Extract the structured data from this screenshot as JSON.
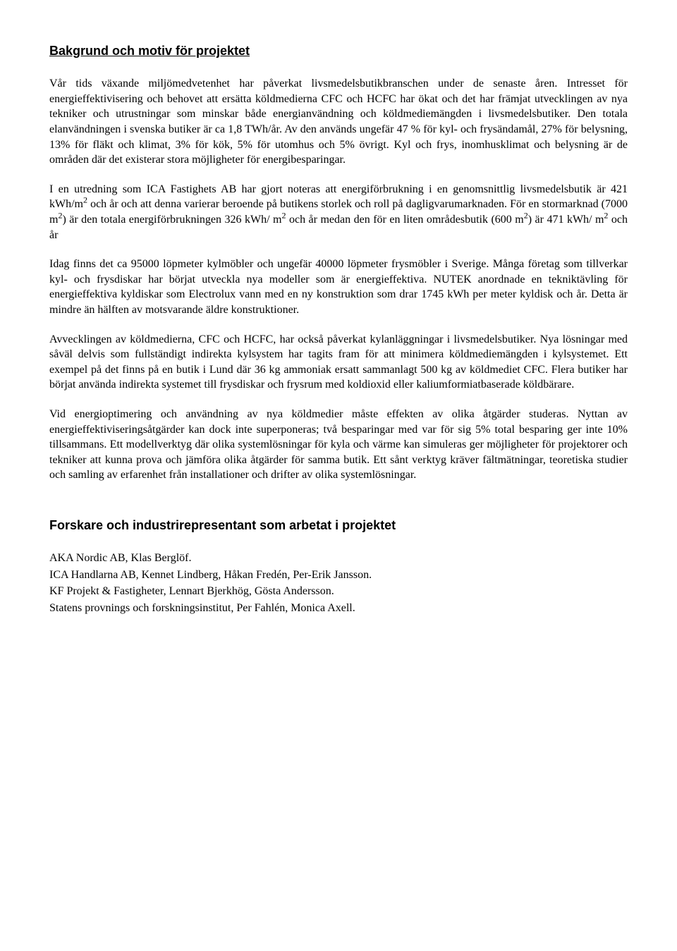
{
  "heading1": "Bakgrund och motiv för projektet",
  "p1": "Vår tids växande miljömedvetenhet har påverkat livsmedelsbutikbranschen under de senaste åren. Intresset för energieffektivisering och behovet att ersätta köldmedierna CFC och HCFC har ökat och det har främjat utvecklingen av nya tekniker och utrustningar som minskar både energianvändning och köldmediemängden i livsmedelsbutiker. Den totala elanvändningen i svenska butiker är ca 1,8 TWh/år. Av den används ungefär 47 % för kyl- och frysändamål, 27% för belysning, 13% för fläkt och klimat, 3% för kök, 5% för utomhus och 5% övrigt. Kyl och frys, inomhusklimat och belysning är de områden där det existerar stora  möjligheter för energibesparingar.",
  "p2_html": "I en utredning som ICA Fastighets AB har gjort noteras att energiförbrukning i en genomsnittlig livsmedelsbutik är 421 kWh/m<sup>2</sup> och år och att denna varierar beroende på butikens storlek och roll på dagligvarumarknaden. För en stormarknad (7000 m<sup>2</sup>) är den totala energiförbrukningen 326 kWh/ m<sup>2</sup> och år medan den för en liten områdesbutik (600 m<sup>2</sup>) är 471 kWh/ m<sup>2</sup> och år",
  "p3": "Idag finns det ca 95000 löpmeter kylmöbler och ungefär 40000 löpmeter frysmöbler i Sverige. Många företag som tillverkar kyl- och frysdiskar har börjat utveckla nya modeller som är energieffektiva. NUTEK anordnade en tekniktävling för energieffektiva kyldiskar som Electrolux vann med en ny konstruktion som drar 1745 kWh per meter kyldisk och år. Detta är mindre än hälften av motsvarande äldre konstruktioner.",
  "p4": "Avvecklingen av köldmedierna, CFC och HCFC, har också påverkat kylanläggningar i livsmedelsbutiker. Nya lösningar med såväl delvis som fullständigt indirekta kylsystem har tagits fram för att minimera köldmediemängden i kylsystemet. Ett exempel på det finns på en butik i Lund där 36 kg ammoniak ersatt sammanlagt 500 kg av köldmediet CFC. Flera butiker har börjat använda indirekta systemet till frysdiskar och frysrum med koldioxid eller kaliumformiatbaserade köldbärare.",
  "p5": "Vid energioptimering och användning av nya köldmedier måste effekten av olika åtgärder studeras. Nyttan av energieffektiviseringsåtgärder kan dock inte superponeras; två besparingar med var för sig 5% total besparing ger inte 10% tillsammans. Ett modellverktyg där olika systemlösningar för kyla och värme kan simuleras ger möjligheter för projektorer och tekniker att kunna prova och jämföra olika åtgärder för samma butik. Ett sånt verktyg kräver fältmätningar, teoretiska studier och samling av erfarenhet från installationer och drifter av olika systemlösningar.",
  "heading2": "Forskare och industrirepresentant som arbetat i projektet",
  "contrib1": "AKA Nordic AB, Klas Berglöf.",
  "contrib2": "ICA Handlarna AB, Kennet Lindberg, Håkan Fredén, Per-Erik Jansson.",
  "contrib3": "KF Projekt & Fastigheter, Lennart Bjerkhög, Gösta Andersson.",
  "contrib4": "Statens provnings och forskningsinstitut, Per Fahlén, Monica Axell."
}
